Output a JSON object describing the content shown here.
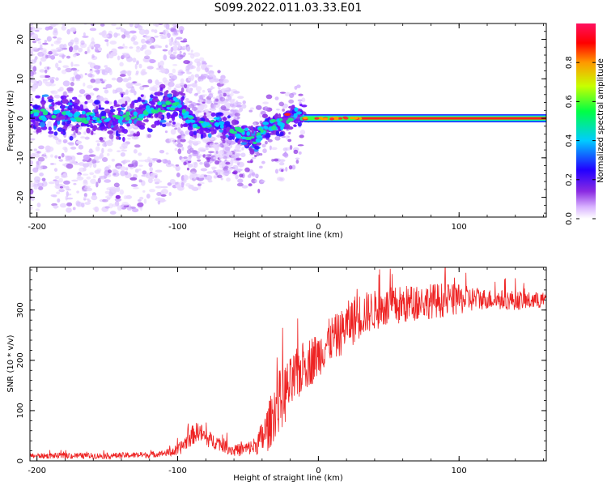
{
  "figure": {
    "title": "S099.2022.011.03.33.E01"
  },
  "colors": {
    "snr_line": "#ee2222",
    "colorbar": [
      "#ffffff",
      "#d9b3ff",
      "#8a2be2",
      "#2200ff",
      "#00ccff",
      "#00ff44",
      "#c8ff00",
      "#ff9900",
      "#ff0000",
      "#ff1060"
    ]
  },
  "chart_data": [
    {
      "type": "heatmap",
      "name": "spectrogram",
      "xlabel": "Height of straight line (km)",
      "ylabel": "Frequency (Hz)",
      "xlim": [
        -205,
        162
      ],
      "ylim": [
        -25,
        24
      ],
      "xticks": [
        -200,
        -100,
        0,
        100
      ],
      "yticks": [
        20,
        10,
        0,
        -10,
        -20
      ],
      "colorbar": {
        "label": "Normalized spectral amplitude",
        "range": [
          0,
          1
        ],
        "ticks": [
          "0.0",
          "0.2",
          "0.4",
          "0.6",
          "0.8"
        ]
      },
      "ridge": {
        "description_points_x": [
          -205,
          -190,
          -170,
          -150,
          -130,
          -115,
          -100,
          -95,
          -90,
          -80,
          -70,
          -60,
          -50,
          -45,
          -40,
          -35,
          -25,
          -18,
          -10,
          0,
          20,
          50,
          100,
          162
        ],
        "description_points_y": [
          0.5,
          1,
          0.5,
          -0.5,
          0.5,
          2.5,
          4,
          1,
          -1,
          -2,
          -1,
          -3.5,
          -4,
          -6,
          -3,
          -2,
          -1.5,
          1.5,
          0.5,
          -0.5,
          0,
          0,
          0,
          0
        ]
      }
    },
    {
      "type": "line",
      "name": "snr",
      "xlabel": "Height of straight line (km)",
      "ylabel": "SNR (10 * v/v)",
      "xlim": [
        -205,
        162
      ],
      "ylim": [
        0,
        385
      ],
      "xticks": [
        -200,
        -100,
        0,
        100
      ],
      "yticks": [
        0,
        100,
        200,
        300
      ],
      "series": [
        {
          "x": [
            -205,
            -180,
            -150,
            -120,
            -110,
            -100,
            -95,
            -90,
            -85,
            -80,
            -75,
            -70,
            -60,
            -50,
            -45,
            -40,
            -35,
            -30,
            -25,
            -20,
            -15,
            -10,
            -5,
            0,
            5,
            10,
            15,
            20,
            25,
            30,
            40,
            50,
            60,
            70,
            80,
            90,
            100,
            110,
            120,
            130,
            140,
            150,
            162
          ],
          "mean": [
            10,
            10,
            10,
            12,
            15,
            20,
            35,
            50,
            60,
            45,
            40,
            35,
            20,
            25,
            30,
            45,
            70,
            110,
            130,
            150,
            170,
            190,
            200,
            210,
            230,
            245,
            250,
            270,
            280,
            290,
            300,
            305,
            310,
            315,
            318,
            320,
            320,
            322,
            322,
            320,
            320,
            318,
            320
          ],
          "amp": [
            5,
            6,
            6,
            6,
            6,
            12,
            15,
            20,
            20,
            18,
            15,
            15,
            12,
            14,
            18,
            35,
            50,
            60,
            65,
            55,
            55,
            50,
            50,
            45,
            45,
            45,
            45,
            45,
            50,
            45,
            40,
            40,
            40,
            35,
            35,
            35,
            30,
            25,
            20,
            20,
            20,
            18,
            15
          ]
        }
      ]
    }
  ]
}
